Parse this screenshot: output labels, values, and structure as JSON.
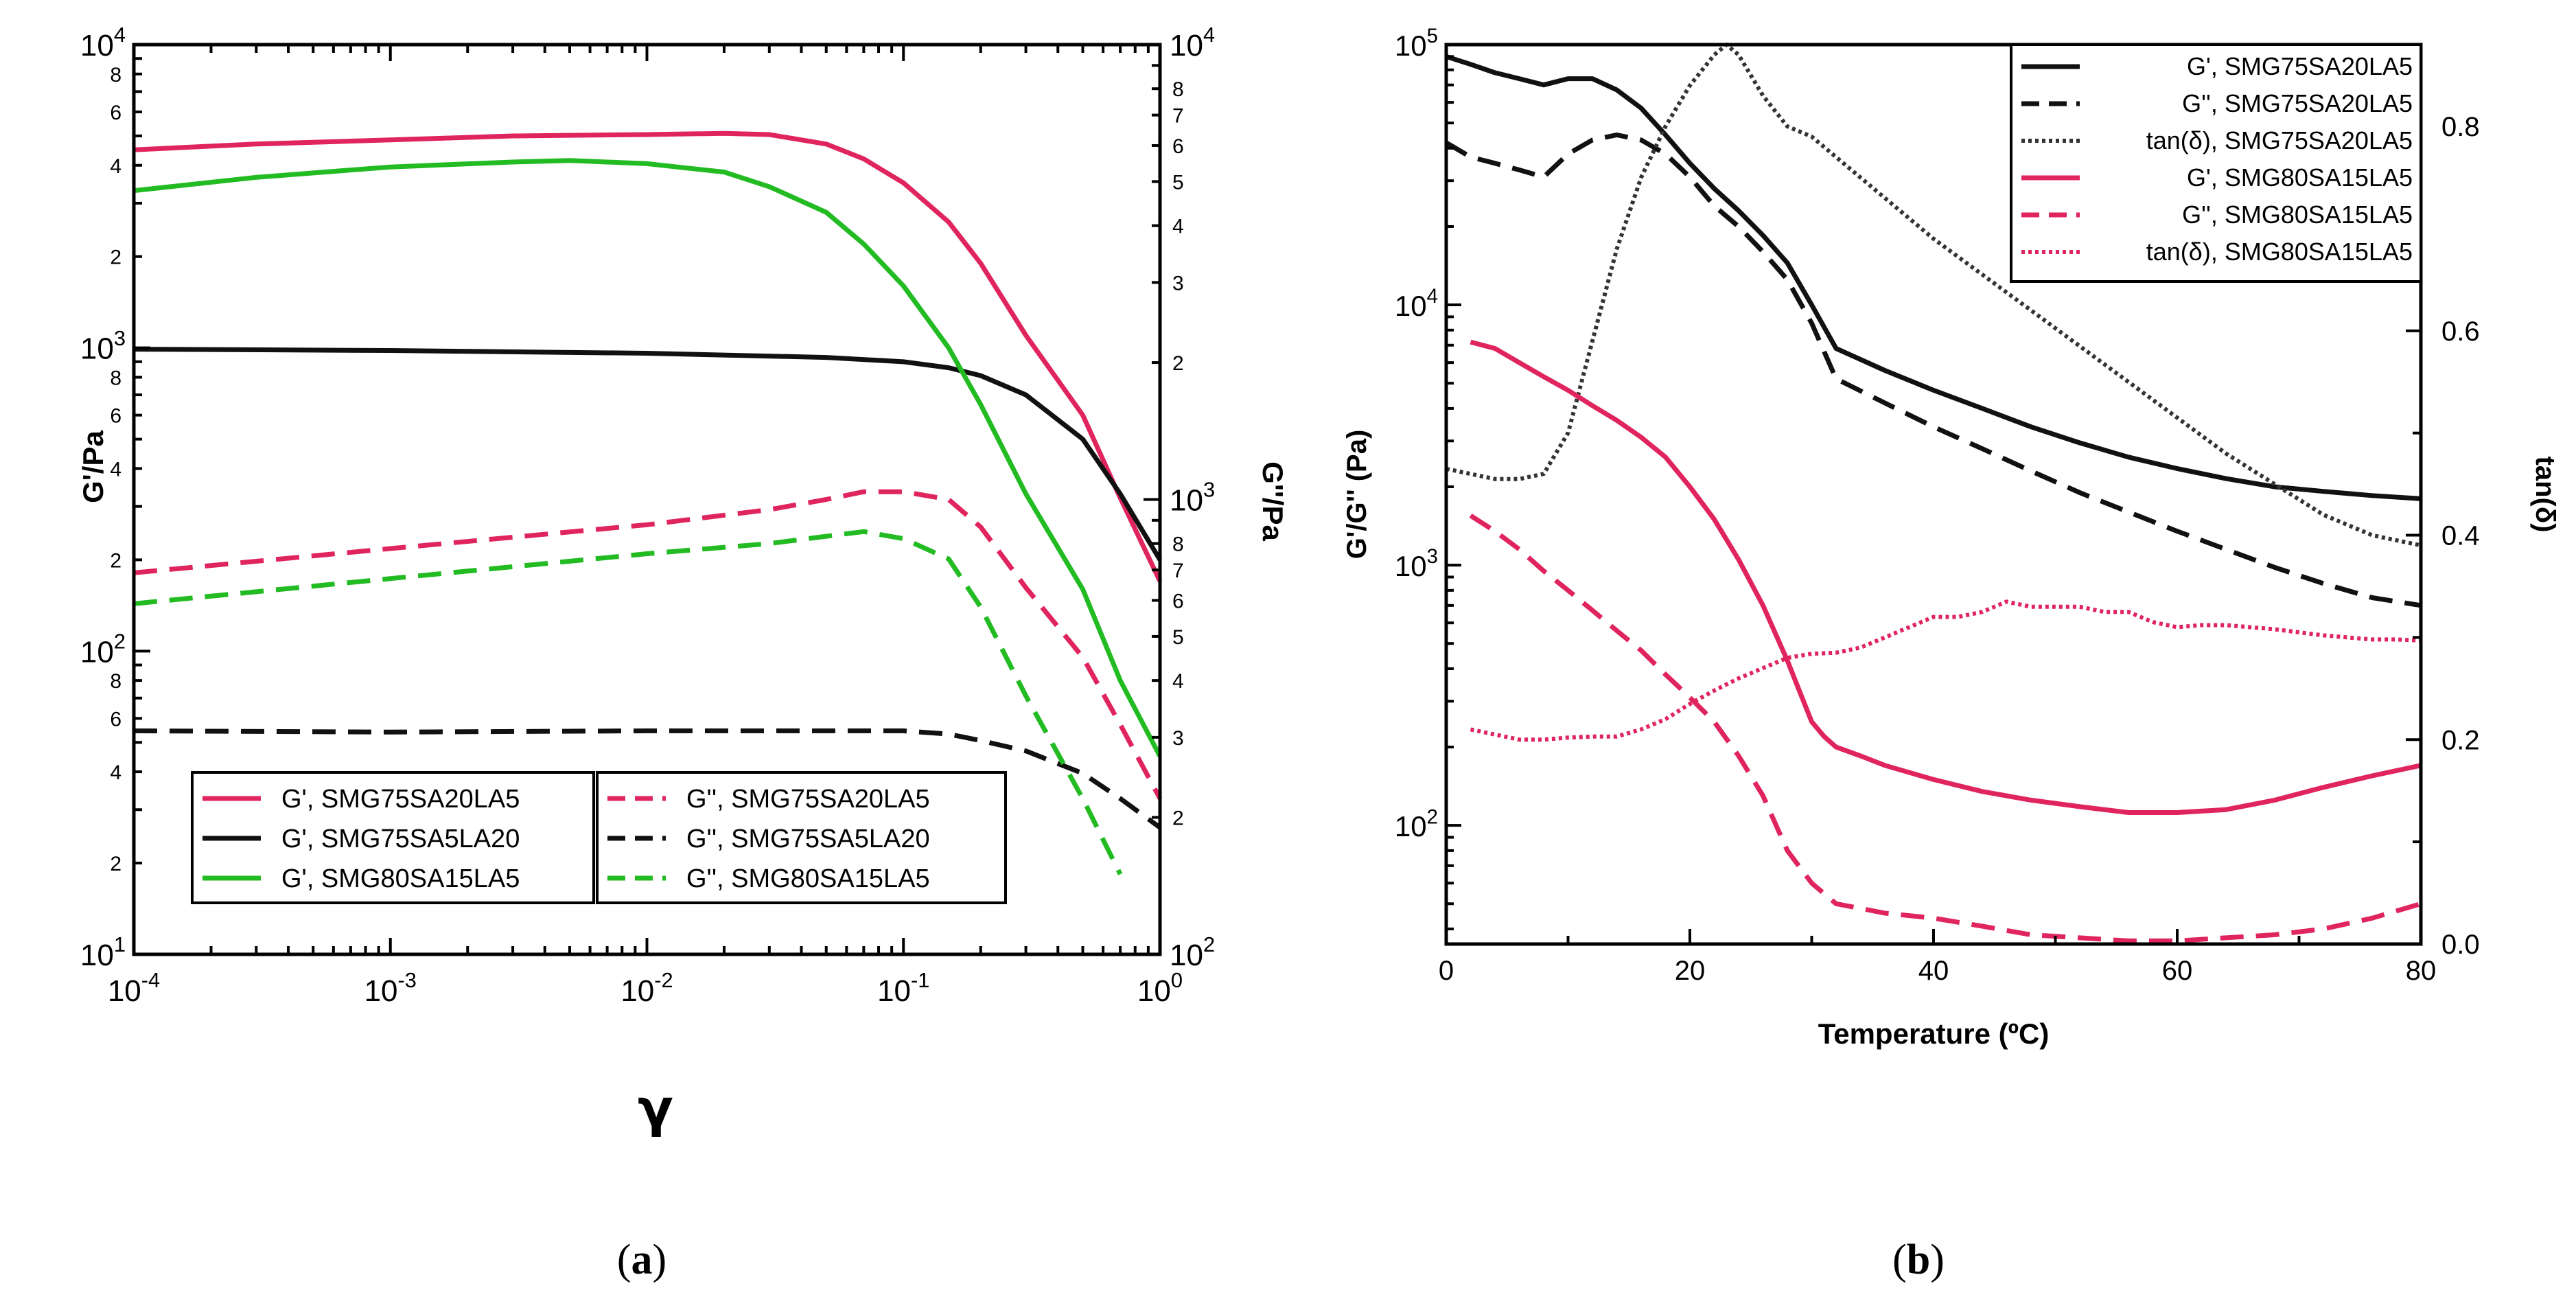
{
  "chart_data": [
    {
      "type": "line",
      "panel_label_prefix": "(",
      "panel_letter": "a",
      "panel_label_suffix": ")",
      "x_scale": "log",
      "xlabel": "γ",
      "xlim": [
        0.0001,
        1
      ],
      "x_ticks": [
        {
          "value": 0.0001,
          "base": "10",
          "exp": "-4"
        },
        {
          "value": 0.001,
          "base": "10",
          "exp": "-3"
        },
        {
          "value": 0.01,
          "base": "10",
          "exp": "-2"
        },
        {
          "value": 0.1,
          "base": "10",
          "exp": "-1"
        },
        {
          "value": 1,
          "base": "10",
          "exp": "0"
        }
      ],
      "ylabel_left": "G'/Pa",
      "y_scale_left": "log",
      "ylim_left": [
        10,
        10000
      ],
      "y_left_ticks": [
        {
          "value": 10,
          "base": "10",
          "exp": "1"
        },
        {
          "value": 100,
          "base": "10",
          "exp": "2"
        },
        {
          "value": 1000,
          "base": "10",
          "exp": "3"
        },
        {
          "value": 10000,
          "base": "10",
          "exp": "4"
        }
      ],
      "y_left_minor_labels": [
        {
          "value": 20,
          "label": "2"
        },
        {
          "value": 40,
          "label": "4"
        },
        {
          "value": 60,
          "label": "6"
        },
        {
          "value": 80,
          "label": "8"
        },
        {
          "value": 200,
          "label": "2"
        },
        {
          "value": 400,
          "label": "4"
        },
        {
          "value": 600,
          "label": "6"
        },
        {
          "value": 800,
          "label": "8"
        },
        {
          "value": 2000,
          "label": "2"
        },
        {
          "value": 4000,
          "label": "4"
        },
        {
          "value": 6000,
          "label": "6"
        },
        {
          "value": 8000,
          "label": "8"
        }
      ],
      "ylabel_right": "G''/Pa",
      "y_scale_right": "log",
      "ylim_right": [
        100,
        10000
      ],
      "y_right_ticks": [
        {
          "value": 100,
          "base": "10",
          "exp": "2"
        },
        {
          "value": 1000,
          "base": "10",
          "exp": "3"
        },
        {
          "value": 10000,
          "base": "10",
          "exp": "4"
        }
      ],
      "y_right_minor_labels": [
        {
          "value": 200,
          "label": "2"
        },
        {
          "value": 300,
          "label": "3"
        },
        {
          "value": 400,
          "label": "4"
        },
        {
          "value": 500,
          "label": "5"
        },
        {
          "value": 600,
          "label": "6"
        },
        {
          "value": 700,
          "label": "7"
        },
        {
          "value": 800,
          "label": "8"
        },
        {
          "value": 2000,
          "label": "2"
        },
        {
          "value": 3000,
          "label": "3"
        },
        {
          "value": 4000,
          "label": "4"
        },
        {
          "value": 5000,
          "label": "5"
        },
        {
          "value": 6000,
          "label": "6"
        },
        {
          "value": 7000,
          "label": "7"
        },
        {
          "value": 8000,
          "label": "8"
        }
      ],
      "legend_placement": "bottom-left, two columns",
      "series": [
        {
          "name": "G', SMG75SA20LA5",
          "axis": "left",
          "color": "#e0245e",
          "dash": "solid",
          "x": [
            0.0001,
            0.0003,
            0.001,
            0.003,
            0.01,
            0.02,
            0.03,
            0.05,
            0.07,
            0.1,
            0.15,
            0.2,
            0.3,
            0.5,
            0.7,
            1.0
          ],
          "y": [
            4500,
            4700,
            4850,
            5000,
            5050,
            5100,
            5050,
            4700,
            4200,
            3500,
            2600,
            1900,
            1100,
            600,
            320,
            170
          ]
        },
        {
          "name": "G', SMG75SA5LA20",
          "axis": "left",
          "color": "#111111",
          "dash": "solid",
          "x": [
            0.0001,
            0.001,
            0.01,
            0.05,
            0.1,
            0.15,
            0.2,
            0.3,
            0.5,
            0.7,
            1.0
          ],
          "y": [
            990,
            980,
            960,
            930,
            900,
            860,
            810,
            700,
            500,
            330,
            200
          ]
        },
        {
          "name": "G', SMG80SA15LA5",
          "axis": "left",
          "color": "#22bb22",
          "dash": "solid",
          "x": [
            0.0001,
            0.0003,
            0.001,
            0.003,
            0.005,
            0.01,
            0.02,
            0.03,
            0.05,
            0.07,
            0.1,
            0.15,
            0.2,
            0.3,
            0.5,
            0.7,
            1.0
          ],
          "y": [
            3300,
            3650,
            3950,
            4100,
            4150,
            4050,
            3800,
            3400,
            2800,
            2200,
            1600,
            1000,
            650,
            330,
            160,
            80,
            45
          ]
        },
        {
          "name": "G'', SMG75SA20LA5",
          "axis": "right",
          "color": "#e0245e",
          "dash": "dash",
          "x": [
            0.0001,
            0.001,
            0.01,
            0.03,
            0.05,
            0.07,
            0.1,
            0.15,
            0.2,
            0.3,
            0.5,
            0.7,
            1.0
          ],
          "y": [
            690,
            780,
            880,
            950,
            1000,
            1040,
            1040,
            1000,
            870,
            640,
            450,
            320,
            220
          ]
        },
        {
          "name": "G'', SMG75SA5LA20",
          "axis": "right",
          "color": "#111111",
          "dash": "dash",
          "x": [
            0.0001,
            0.001,
            0.01,
            0.05,
            0.1,
            0.15,
            0.2,
            0.3,
            0.5,
            0.7,
            1.0
          ],
          "y": [
            310,
            308,
            310,
            310,
            310,
            305,
            295,
            280,
            250,
            220,
            190
          ]
        },
        {
          "name": "G'', SMG80SA15LA5",
          "axis": "right",
          "color": "#22bb22",
          "dash": "dash",
          "x": [
            0.0001,
            0.001,
            0.01,
            0.03,
            0.05,
            0.07,
            0.1,
            0.15,
            0.2,
            0.3,
            0.5,
            0.7
          ],
          "y": [
            590,
            670,
            760,
            800,
            830,
            850,
            820,
            740,
            580,
            370,
            220,
            150
          ]
        }
      ]
    },
    {
      "type": "line",
      "panel_label_prefix": "(",
      "panel_letter": "b",
      "panel_label_suffix": ")",
      "x_scale": "linear",
      "xlabel": "Temperature (ºC)",
      "xlim": [
        0,
        80
      ],
      "x_ticks": [
        0,
        20,
        40,
        60,
        80
      ],
      "ylabel_left": "G'/G'' (Pa)",
      "y_scale_left": "log",
      "ylim_left": [
        35,
        100000
      ],
      "y_left_ticks": [
        {
          "value": 100,
          "base": "10",
          "exp": "2"
        },
        {
          "value": 1000,
          "base": "10",
          "exp": "3"
        },
        {
          "value": 10000,
          "base": "10",
          "exp": "4"
        },
        {
          "value": 100000,
          "base": "10",
          "exp": "5"
        }
      ],
      "ylabel_right": "tan(δ)",
      "y_scale_right": "linear",
      "ylim_right": [
        0,
        0.88
      ],
      "y_right_ticks": [
        {
          "value": 0,
          "label": "0.0"
        },
        {
          "value": 0.2,
          "label": "0.2"
        },
        {
          "value": 0.4,
          "label": "0.4"
        },
        {
          "value": 0.6,
          "label": "0.6"
        },
        {
          "value": 0.8,
          "label": "0.8"
        }
      ],
      "legend_placement": "top-right",
      "series": [
        {
          "name": "G', SMG75SA20LA5",
          "axis": "left",
          "color": "#111111",
          "dash": "solid",
          "x": [
            0,
            2,
            4,
            6,
            8,
            10,
            12,
            14,
            16,
            18,
            20,
            22,
            24,
            26,
            28,
            30,
            32,
            36,
            40,
            44,
            48,
            52,
            56,
            60,
            64,
            68,
            72,
            76,
            80
          ],
          "y": [
            90000,
            84000,
            78000,
            74000,
            70000,
            74000,
            74000,
            67000,
            57000,
            45000,
            35000,
            28000,
            23000,
            18500,
            14500,
            10000,
            6800,
            5600,
            4700,
            4000,
            3400,
            2950,
            2600,
            2350,
            2150,
            2000,
            1920,
            1850,
            1800
          ]
        },
        {
          "name": "G'', SMG75SA20LA5",
          "axis": "left",
          "color": "#111111",
          "dash": "dash",
          "x": [
            0,
            2,
            4,
            6,
            8,
            10,
            12,
            14,
            16,
            18,
            20,
            22,
            24,
            26,
            28,
            30,
            32,
            36,
            40,
            44,
            48,
            52,
            56,
            60,
            64,
            68,
            72,
            76,
            80
          ],
          "y": [
            42000,
            37000,
            35000,
            33000,
            31000,
            38000,
            43000,
            45000,
            43000,
            38000,
            31000,
            24000,
            20000,
            16000,
            12500,
            8500,
            5200,
            4200,
            3400,
            2800,
            2300,
            1900,
            1600,
            1350,
            1150,
            980,
            850,
            750,
            700
          ]
        },
        {
          "name": "tan(δ), SMG75SA20LA5",
          "axis": "right",
          "color": "#333333",
          "dash": "dot",
          "x": [
            0,
            2,
            4,
            6,
            8,
            10,
            12,
            14,
            16,
            18,
            20,
            22,
            23,
            24,
            26,
            28,
            30,
            32,
            40,
            48,
            56,
            64,
            72,
            76,
            80
          ],
          "y": [
            0.465,
            0.46,
            0.455,
            0.455,
            0.46,
            0.5,
            0.59,
            0.68,
            0.75,
            0.8,
            0.84,
            0.87,
            0.88,
            0.87,
            0.83,
            0.8,
            0.79,
            0.77,
            0.69,
            0.62,
            0.55,
            0.48,
            0.42,
            0.4,
            0.39
          ]
        },
        {
          "name": "G', SMG80SA15LA5",
          "axis": "left",
          "color": "#e0245e",
          "dash": "solid",
          "x": [
            2,
            4,
            6,
            8,
            10,
            12,
            14,
            16,
            18,
            20,
            22,
            24,
            26,
            28,
            30,
            31,
            32,
            34,
            36,
            40,
            44,
            48,
            52,
            56,
            60,
            64,
            68,
            72,
            76,
            80
          ],
          "y": [
            7200,
            6800,
            6000,
            5300,
            4700,
            4100,
            3600,
            3100,
            2600,
            2000,
            1500,
            1050,
            700,
            430,
            250,
            220,
            200,
            185,
            170,
            150,
            135,
            125,
            118,
            112,
            112,
            115,
            125,
            140,
            155,
            170
          ]
        },
        {
          "name": "G'', SMG80SA15LA5",
          "axis": "left",
          "color": "#e0245e",
          "dash": "dash",
          "x": [
            2,
            4,
            6,
            8,
            10,
            12,
            14,
            16,
            18,
            20,
            22,
            24,
            26,
            28,
            30,
            32,
            36,
            40,
            44,
            48,
            52,
            56,
            60,
            64,
            68,
            72,
            76,
            80
          ],
          "y": [
            1550,
            1350,
            1150,
            950,
            800,
            670,
            560,
            470,
            380,
            310,
            250,
            185,
            130,
            80,
            60,
            50,
            46,
            44,
            41,
            38,
            37,
            36,
            36,
            37,
            38,
            40,
            44,
            50
          ]
        },
        {
          "name": "tan(δ), SMG80SA15LA5",
          "axis": "right",
          "color": "#e0245e",
          "dash": "dot",
          "x": [
            2,
            4,
            6,
            8,
            10,
            12,
            14,
            16,
            18,
            20,
            22,
            24,
            26,
            28,
            30,
            32,
            34,
            36,
            38,
            40,
            42,
            44,
            46,
            48,
            50,
            52,
            54,
            56,
            58,
            60,
            62,
            64,
            66,
            68,
            70,
            72,
            74,
            76,
            78,
            80
          ],
          "y": [
            0.21,
            0.205,
            0.2,
            0.2,
            0.202,
            0.203,
            0.203,
            0.21,
            0.22,
            0.235,
            0.248,
            0.26,
            0.27,
            0.28,
            0.284,
            0.285,
            0.29,
            0.3,
            0.31,
            0.32,
            0.32,
            0.325,
            0.335,
            0.33,
            0.33,
            0.33,
            0.325,
            0.325,
            0.315,
            0.31,
            0.312,
            0.312,
            0.31,
            0.308,
            0.305,
            0.302,
            0.3,
            0.298,
            0.298,
            0.297
          ]
        }
      ]
    }
  ]
}
